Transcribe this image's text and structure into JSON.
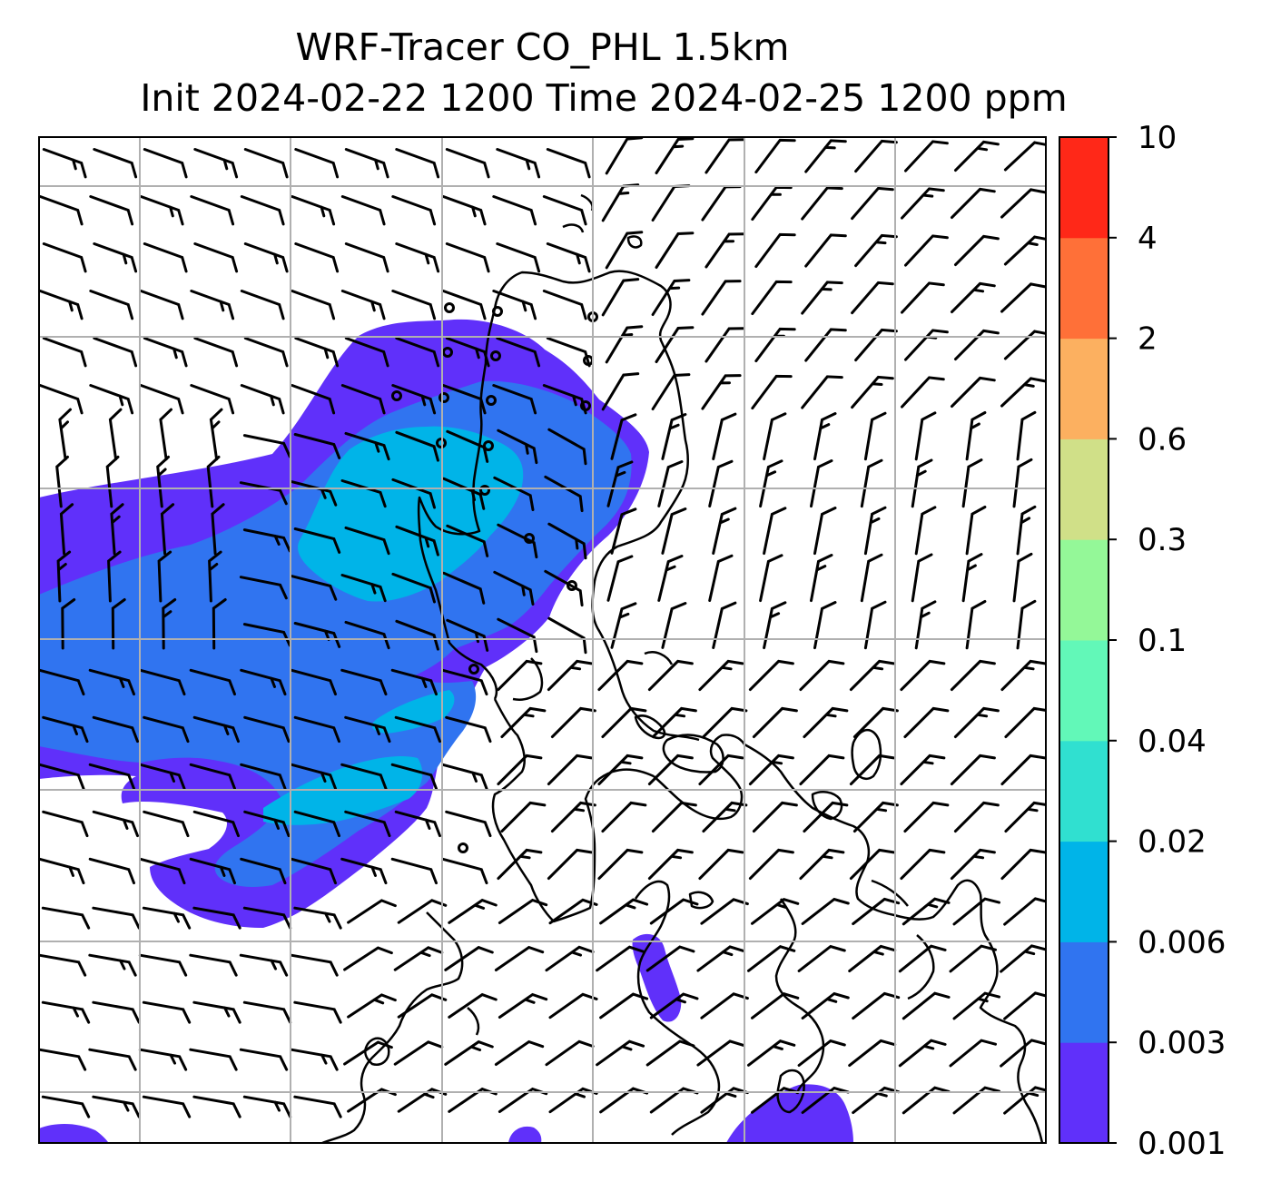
{
  "title": {
    "line1": "WRF-Tracer CO_PHL 1.5km",
    "line2": "Init 2024-02-22 1200 Time 2024-02-25 1200 ppm"
  },
  "colorbar": {
    "levels": [
      "0.001",
      "0.003",
      "0.006",
      "0.02",
      "0.04",
      "0.1",
      "0.3",
      "0.6",
      "2",
      "4",
      "10"
    ],
    "colors": [
      "#6030fa",
      "#3074f0",
      "#00b4e8",
      "#30e0d0",
      "#62f8b8",
      "#94f898",
      "#d0e088",
      "#fcb060",
      "#ff7038",
      "#ff2818"
    ]
  },
  "colors": {
    "grid": "#b0b0b0",
    "coast": "#000000",
    "barb": "#000000"
  }
}
